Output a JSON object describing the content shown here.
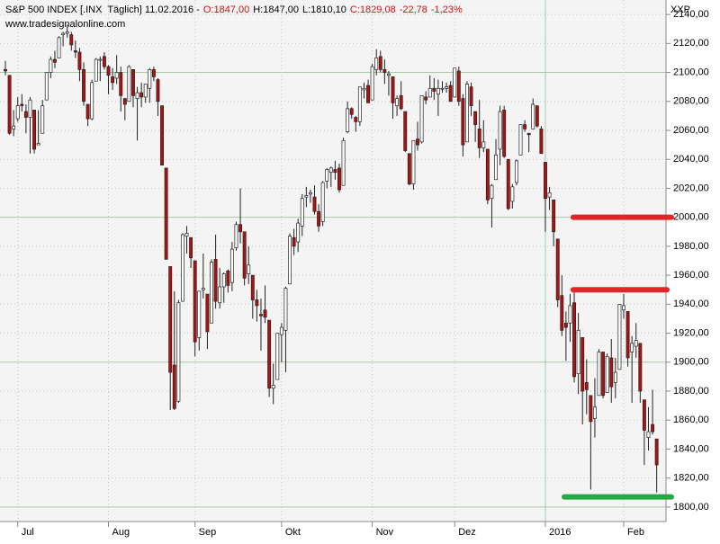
{
  "chart_data": {
    "type": "candlestick",
    "title_parts": [
      {
        "text": "S&P 500 INDEX [.INX  Täglich] 11.02.2016 -",
        "color": "#000000"
      },
      {
        "text": "O:1847,00",
        "color": "#d01010"
      },
      {
        "text": "H:1847,00",
        "color": "#000000"
      },
      {
        "text": "L:1810,10",
        "color": "#000000"
      },
      {
        "text": "C:1829,08",
        "color": "#d01010"
      },
      {
        "text": "-22,78",
        "color": "#d01010"
      },
      {
        "text": "-1,23%",
        "color": "#d01010"
      }
    ],
    "subtitle": "www.tradesignalonline.com",
    "symbol": "XXP",
    "up_color": "#ffffff",
    "down_color": "#b01010",
    "open": [
      2102,
      2098,
      2061,
      2068,
      2078,
      2073,
      2069,
      2074,
      2050,
      2058,
      2081,
      2100,
      2109,
      2110,
      2126,
      2127,
      2126,
      2115,
      2114,
      2102,
      2078,
      2068,
      2094,
      2109,
      2111,
      2104,
      2097,
      2096,
      2100,
      2082,
      2080,
      2102,
      2082,
      2086,
      2083,
      2089,
      2102,
      2095,
      2077,
      2034,
      1966,
      1898,
      1873,
      1942,
      1987,
      1986,
      1970,
      1917,
      1950,
      1947,
      1927,
      1971,
      1941,
      1952,
      1963,
      1955,
      1979,
      1995,
      1990,
      1961,
      1960,
      1943,
      1933,
      1936,
      1929,
      1882,
      1888,
      1919,
      1922,
      1954,
      1986,
      1983,
      1994,
      2014,
      2016,
      2014,
      2004,
      1997,
      2025,
      2031,
      2033,
      2034,
      2022,
      2059,
      2075,
      2069,
      2066,
      2088,
      2091,
      2081,
      2102,
      2111,
      2102,
      2098,
      2097,
      2077,
      2084,
      2073,
      2044,
      2023,
      2054,
      2052,
      2083,
      2083,
      2089,
      2085,
      2089,
      2089,
      2091,
      2083,
      2101,
      2082,
      2052,
      2090,
      2073,
      2061,
      2048,
      2047,
      2013,
      2026,
      2047,
      2074,
      2040,
      2011,
      2024,
      2043,
      2064,
      2058,
      2061,
      2077,
      2061,
      2038,
      2014,
      2012,
      1985,
      1946,
      1927,
      1927,
      1941,
      1892,
      1917,
      1886,
      1877,
      1861,
      1877,
      1907,
      1879,
      1903,
      1886,
      1895,
      1936,
      1935,
      1907,
      1911,
      1913,
      1874,
      1848,
      1857,
      1847
    ],
    "high": [
      2108,
      2098,
      2074,
      2083,
      2085,
      2078,
      2083,
      2074,
      2074,
      2081,
      2100,
      2111,
      2115,
      2125,
      2128,
      2133,
      2128,
      2122,
      2117,
      2107,
      2078,
      2095,
      2110,
      2111,
      2114,
      2105,
      2103,
      2112,
      2104,
      2082,
      2105,
      2102,
      2090,
      2093,
      2092,
      2103,
      2104,
      2096,
      2077,
      2034,
      1966,
      1949,
      1943,
      1989,
      1994,
      1986,
      1970,
      1949,
      1975,
      1947,
      1971,
      1988,
      1965,
      1962,
      1964,
      1983,
      1997,
      2020,
      1990,
      1980,
      1960,
      1950,
      1944,
      1953,
      1929,
      1899,
      1920,
      1927,
      1952,
      1989,
      1992,
      1999,
      2016,
      2021,
      2019,
      2022,
      2009,
      2025,
      2034,
      2035,
      2039,
      2037,
      2055,
      2080,
      2076,
      2070,
      2090,
      2093,
      2095,
      2106,
      2116,
      2115,
      2109,
      2101,
      2097,
      2084,
      2094,
      2073,
      2044,
      2053,
      2066,
      2084,
      2087,
      2098,
      2096,
      2095,
      2094,
      2093,
      2094,
      2103,
      2104,
      2085,
      2094,
      2093,
      2073,
      2081,
      2067,
      2047,
      2023,
      2054,
      2077,
      2077,
      2040,
      2023,
      2040,
      2064,
      2067,
      2058,
      2082,
      2077,
      2063,
      2038,
      2021,
      2012,
      1985,
      1960,
      1935,
      1947,
      1950,
      1934,
      1917,
      1902,
      1877,
      1889,
      1909,
      1907,
      1906,
      1916,
      1903,
      1940,
      1947,
      1935,
      1918,
      1927,
      1913,
      1874,
      1869,
      1881,
      1847
    ],
    "low": [
      2098,
      2057,
      2056,
      2066,
      2073,
      2058,
      2044,
      2044,
      2050,
      2058,
      2081,
      2096,
      2103,
      2110,
      2118,
      2124,
      2115,
      2110,
      2094,
      2077,
      2063,
      2067,
      2094,
      2094,
      2102,
      2085,
      2088,
      2092,
      2073,
      2067,
      2080,
      2076,
      2053,
      2076,
      2079,
      2079,
      2094,
      2070,
      2036,
      1971,
      1867,
      1867,
      1872,
      1942,
      1975,
      1965,
      1904,
      1908,
      1944,
      1909,
      1927,
      1937,
      1937,
      1941,
      1948,
      1949,
      1977,
      1982,
      1953,
      1954,
      1930,
      1928,
      1908,
      1927,
      1876,
      1871,
      1888,
      1900,
      1893,
      1954,
      1974,
      1976,
      1987,
      2007,
      2010,
      2002,
      1990,
      1994,
      2020,
      2021,
      2026,
      2017,
      2022,
      2058,
      2068,
      2059,
      2063,
      2082,
      2079,
      2081,
      2098,
      2100,
      2092,
      2084,
      2068,
      2070,
      2074,
      2045,
      2022,
      2019,
      2046,
      2051,
      2078,
      2083,
      2081,
      2070,
      2086,
      2086,
      2080,
      2083,
      2077,
      2042,
      2052,
      2070,
      2052,
      2041,
      2045,
      2009,
      1993,
      2026,
      2036,
      2041,
      2005,
      2006,
      2022,
      2043,
      2059,
      2045,
      2061,
      2062,
      2044,
      1990,
      2005,
      1980,
      1938,
      1918,
      1901,
      1914,
      1886,
      1878,
      1857,
      1864,
      1812,
      1848,
      1877,
      1875,
      1879,
      1872,
      1875,
      1895,
      1930,
      1897,
      1872,
      1903,
      1872,
      1829,
      1839,
      1850,
      1810.1
    ],
    "close": [
      2101,
      2058,
      2063,
      2077,
      2077,
      2069,
      2081,
      2047,
      2051,
      2077,
      2100,
      2109,
      2107,
      2124,
      2127,
      2128,
      2119,
      2114,
      2102,
      2080,
      2068,
      2093,
      2109,
      2109,
      2104,
      2098,
      2093,
      2100,
      2084,
      2078,
      2104,
      2084,
      2086,
      2083,
      2092,
      2102,
      2097,
      2080,
      2036,
      1971,
      1893,
      1868,
      1941,
      1988,
      1989,
      1972,
      1914,
      1949,
      1951,
      1921,
      1969,
      1942,
      1952,
      1961,
      1953,
      1978,
      1995,
      1990,
      1958,
      1967,
      1943,
      1939,
      1932,
      1931,
      1882,
      1884,
      1920,
      1924,
      1951,
      1987,
      1980,
      1996,
      2013,
      2015,
      2017,
      2004,
      1994,
      2024,
      2033,
      2034,
      2031,
      2019,
      2053,
      2075,
      2071,
      2066,
      2090,
      2089,
      2079,
      2104,
      2110,
      2102,
      2100,
      2099,
      2079,
      2082,
      2075,
      2046,
      2023,
      2053,
      2050,
      2084,
      2081,
      2089,
      2087,
      2089,
      2089,
      2090,
      2080,
      2103,
      2080,
      2050,
      2092,
      2077,
      2064,
      2048,
      2052,
      2012,
      2022,
      2043,
      2073,
      2042,
      2006,
      2021,
      2039,
      2064,
      2061,
      2057,
      2078,
      2063,
      2044,
      2013,
      2017,
      1990,
      1943,
      1922,
      1924,
      1939,
      1890,
      1922,
      1880,
      1881,
      1859,
      1869,
      1907,
      1877,
      1904,
      1883,
      1893,
      1940,
      1939,
      1903,
      1913,
      1915,
      1880,
      1853,
      1852,
      1852,
      1829.08
    ],
    "xticks": [
      {
        "value": 3,
        "label": "Jul"
      },
      {
        "value": 25,
        "label": "Aug"
      },
      {
        "value": 46,
        "label": "Sep"
      },
      {
        "value": 67,
        "label": "Okt"
      },
      {
        "value": 89,
        "label": "Nov"
      },
      {
        "value": 109,
        "label": "Dez"
      },
      {
        "value": 131,
        "label": "2016"
      },
      {
        "value": 150,
        "label": "Feb"
      }
    ],
    "ylim": [
      1790,
      2150
    ],
    "yticks": [
      {
        "value": 1800,
        "label": "1800,00"
      },
      {
        "value": 1820,
        "label": "1820,00"
      },
      {
        "value": 1840,
        "label": "1840,00"
      },
      {
        "value": 1860,
        "label": "1860,00"
      },
      {
        "value": 1880,
        "label": "1880,00"
      },
      {
        "value": 1900,
        "label": "1900,00"
      },
      {
        "value": 1920,
        "label": "1920,00"
      },
      {
        "value": 1940,
        "label": "1940,00"
      },
      {
        "value": 1960,
        "label": "1960,00"
      },
      {
        "value": 1980,
        "label": "1980,00"
      },
      {
        "value": 2000,
        "label": "2000,00"
      },
      {
        "value": 2020,
        "label": "2020,00"
      },
      {
        "value": 2040,
        "label": "2040,00"
      },
      {
        "value": 2060,
        "label": "2060,00"
      },
      {
        "value": 2080,
        "label": "2080,00"
      },
      {
        "value": 2100,
        "label": "2100,00"
      },
      {
        "value": 2120,
        "label": "2120,00"
      },
      {
        "value": 2140,
        "label": "2140,00"
      }
    ],
    "levels": [
      {
        "value": 2000,
        "color": "#e02626"
      },
      {
        "value": 1950,
        "color": "#e02626"
      },
      {
        "value": 1807,
        "color": "#22aa44"
      }
    ],
    "grid": true
  }
}
